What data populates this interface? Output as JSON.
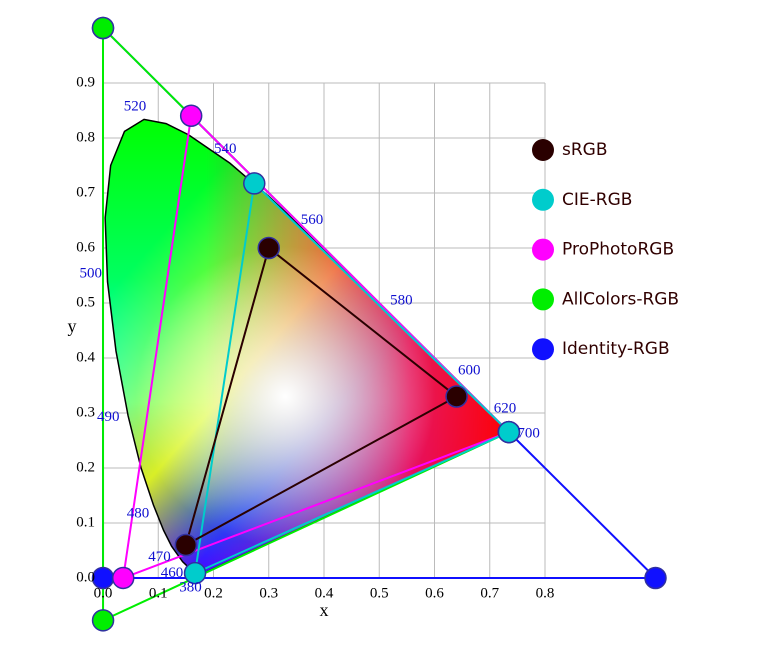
{
  "chart_data": {
    "type": "gamut",
    "x_label": "x",
    "y_label": "y",
    "xlim": [
      0,
      0.8
    ],
    "ylim": [
      0,
      0.9
    ],
    "xticks": [
      {
        "value": 0,
        "label": "0.0"
      },
      0.1,
      0.2,
      0.3,
      0.4,
      0.5,
      0.6,
      0.7,
      0.8
    ],
    "yticks": [
      {
        "value": 0,
        "label": "0.0"
      },
      0.1,
      0.2,
      0.3,
      0.4,
      0.5,
      0.6,
      0.7,
      0.8,
      0.9
    ],
    "grid": true,
    "legend": "right",
    "locus": {
      "x": [
        0.1741,
        0.1714,
        0.1644,
        0.1566,
        0.144,
        0.1241,
        0.1096,
        0.0913,
        0.0687,
        0.0454,
        0.0235,
        0.0082,
        0.0039,
        0.0139,
        0.0389,
        0.0743,
        0.1142,
        0.1547,
        0.2296,
        0.3016,
        0.3731,
        0.4441,
        0.5125,
        0.5752,
        0.627,
        0.6658,
        0.6915,
        0.719,
        0.73,
        0.7347
      ],
      "y": [
        0.005,
        0.0051,
        0.0109,
        0.0177,
        0.0297,
        0.0578,
        0.0868,
        0.1327,
        0.2007,
        0.295,
        0.4127,
        0.5384,
        0.6548,
        0.7502,
        0.812,
        0.8338,
        0.8262,
        0.8059,
        0.7543,
        0.6923,
        0.6245,
        0.5547,
        0.4866,
        0.4242,
        0.3725,
        0.334,
        0.3083,
        0.2809,
        0.27,
        0.2653
      ]
    },
    "wavelength_labels": [
      {
        "wavelength": 380,
        "x": 0.1741,
        "y": 0.005
      },
      {
        "wavelength": 460,
        "x": 0.144,
        "y": 0.0297
      },
      {
        "wavelength": 470,
        "x": 0.1241,
        "y": 0.0578
      },
      {
        "wavelength": 480,
        "x": 0.0913,
        "y": 0.1327
      },
      {
        "wavelength": 490,
        "x": 0.0454,
        "y": 0.295
      },
      {
        "wavelength": 500,
        "x": 0.0082,
        "y": 0.5384
      },
      {
        "wavelength": 520,
        "x": 0.0743,
        "y": 0.8338
      },
      {
        "wavelength": 540,
        "x": 0.2296,
        "y": 0.7543
      },
      {
        "wavelength": 560,
        "x": 0.3731,
        "y": 0.6245
      },
      {
        "wavelength": 580,
        "x": 0.5125,
        "y": 0.4866
      },
      {
        "wavelength": 600,
        "x": 0.627,
        "y": 0.3725
      },
      {
        "wavelength": 620,
        "x": 0.6915,
        "y": 0.3083
      },
      {
        "wavelength": 700,
        "x": 0.7347,
        "y": 0.2653
      }
    ],
    "series": [
      {
        "name": "Identity-RGB",
        "color": "#1010ff",
        "x": [
          1,
          0,
          0
        ],
        "values": [
          0,
          1,
          0
        ]
      },
      {
        "name": "AllColors-RGB",
        "color": "#00ee00",
        "x": [
          0.7347,
          0,
          0.0001
        ],
        "values": [
          0.2653,
          1,
          -0.077
        ]
      },
      {
        "name": "ProPhotoRGB",
        "color": "#ff00ff",
        "x": [
          0.7347,
          0.1596,
          0.0366
        ],
        "values": [
          0.2653,
          0.8404,
          0.0001
        ]
      },
      {
        "name": "CIE-RGB",
        "color": "#00cccc",
        "x": [
          0.7347,
          0.2738,
          0.1666
        ],
        "values": [
          0.2653,
          0.7174,
          0.0089
        ]
      },
      {
        "name": "sRGB",
        "color": "#2a0000",
        "x": [
          0.64,
          0.3,
          0.15
        ],
        "values": [
          0.33,
          0.6,
          0.06
        ]
      }
    ]
  }
}
